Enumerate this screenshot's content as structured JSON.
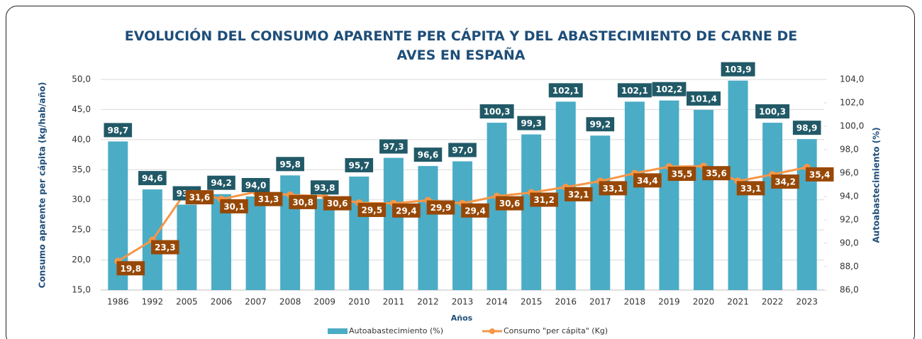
{
  "chart_data": {
    "type": "bar_line",
    "title": "EVOLUCIÓN DEL CONSUMO APARENTE PER CÁPITA Y DEL ABASTECIMIENTO DE CARNE DE AVES EN ESPAÑA",
    "y_label": "Consumo aparente per cápita (kg/hab/año)",
    "y2_label": "Autoabastecimiento (%)",
    "x_label": "Años",
    "categories": [
      "1986",
      "1992",
      "2005",
      "2006",
      "2007",
      "2008",
      "2009",
      "2010",
      "2011",
      "2012",
      "2013",
      "2014",
      "2015",
      "2016",
      "2017",
      "2018",
      "2019",
      "2020",
      "2021",
      "2022",
      "2023"
    ],
    "series": [
      {
        "name": "Autoabastecimiento (%)",
        "kind": "bar",
        "axis": "y2",
        "color": "#4bacc6",
        "values": [
          98.7,
          94.6,
          93.3,
          94.2,
          94.0,
          95.8,
          93.8,
          95.7,
          97.3,
          96.6,
          97.0,
          100.3,
          99.3,
          102.1,
          99.2,
          102.1,
          102.2,
          101.4,
          103.9,
          100.3,
          98.9
        ],
        "value_labels": [
          "98,7",
          "94,6",
          "93,3",
          "94,2",
          "94,0",
          "95,8",
          "93,8",
          "95,7",
          "97,3",
          "96,6",
          "97,0",
          "100,3",
          "99,3",
          "102,1",
          "99,2",
          "102,1",
          "102,2",
          "101,4",
          "103,9",
          "100,3",
          "98,9"
        ]
      },
      {
        "name": "Consumo \"per cápita\" (Kg)",
        "kind": "line",
        "color": "#f79646",
        "values": [
          19.8,
          23.3,
          31.6,
          30.1,
          31.3,
          30.8,
          30.6,
          29.5,
          29.4,
          29.9,
          29.4,
          30.6,
          31.2,
          32.1,
          33.1,
          34.4,
          35.5,
          35.6,
          33.1,
          34.2,
          35.4
        ],
        "value_labels": [
          "19,8",
          "23,3",
          "31,6",
          "30,1",
          "31,3",
          "30,8",
          "30,6",
          "29,5",
          "29,4",
          "29,9",
          "29,4",
          "30,6",
          "31,2",
          "32,1",
          "33,1",
          "34,4",
          "35,5",
          "35,6",
          "33,1",
          "34,2",
          "35,4"
        ]
      }
    ],
    "ylim": [
      15,
      50
    ],
    "yticks": [
      {
        "value": 15,
        "label": "15,0"
      },
      {
        "value": 20,
        "label": "20,0"
      },
      {
        "value": 25,
        "label": "25,0"
      },
      {
        "value": 30,
        "label": "30,0"
      },
      {
        "value": 35,
        "label": "35,0"
      },
      {
        "value": 40,
        "label": "40,0"
      },
      {
        "value": 45,
        "label": "45,0"
      },
      {
        "value": 50,
        "label": "50,0"
      }
    ],
    "y2lim": [
      86,
      104
    ],
    "y2ticks": [
      {
        "value": 86,
        "label": "86,0"
      },
      {
        "value": 88,
        "label": "88,0"
      },
      {
        "value": 90,
        "label": "90,0"
      },
      {
        "value": 92,
        "label": "92,0"
      },
      {
        "value": 94,
        "label": "94,0"
      },
      {
        "value": 96,
        "label": "96,0"
      },
      {
        "value": 98,
        "label": "98,0"
      },
      {
        "value": 100,
        "label": "100,0"
      },
      {
        "value": 102,
        "label": "102,0"
      },
      {
        "value": 104,
        "label": "104,0"
      }
    ],
    "grid": true,
    "legend": "bottom"
  }
}
